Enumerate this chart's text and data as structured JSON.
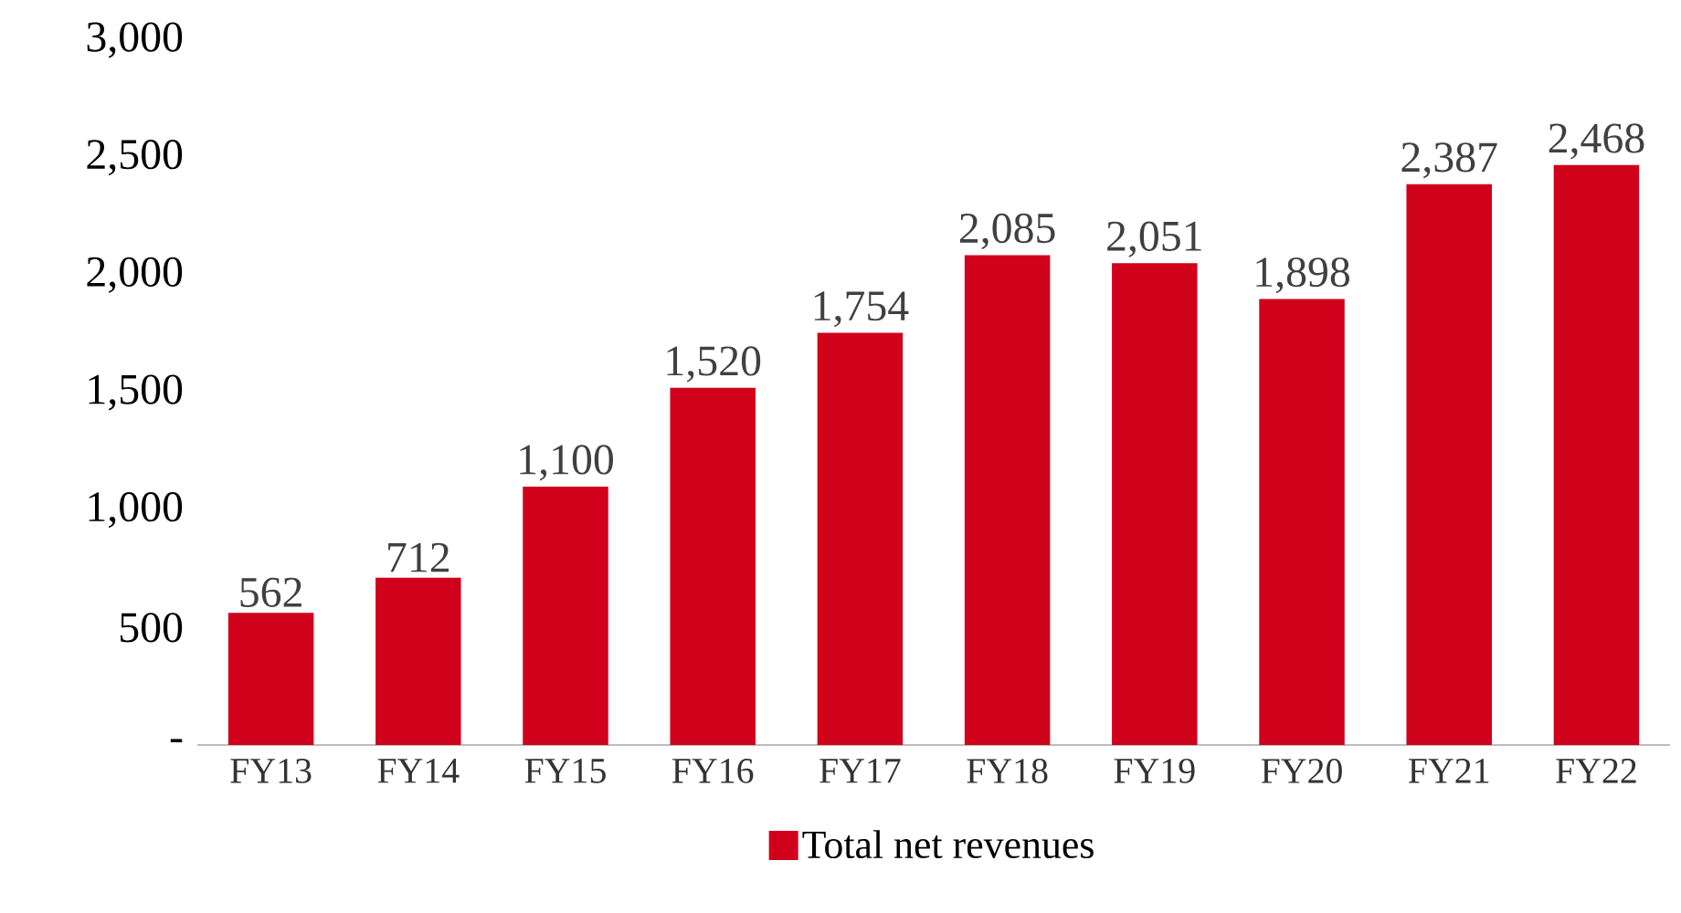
{
  "chart_data": {
    "type": "bar",
    "categories": [
      "FY13",
      "FY14",
      "FY15",
      "FY16",
      "FY17",
      "FY18",
      "FY19",
      "FY20",
      "FY21",
      "FY22"
    ],
    "series": [
      {
        "name": "Total net revenues",
        "color": "#d0021b",
        "values": [
          562,
          712,
          1100,
          1520,
          1754,
          2085,
          2051,
          1898,
          2387,
          2468
        ],
        "value_labels": [
          "562",
          "712",
          "1,100",
          "1,520",
          "1,754",
          "2,085",
          "2,051",
          "1,898",
          "2,387",
          "2,468"
        ]
      }
    ],
    "ylim": [
      0,
      3000
    ],
    "yticks": [
      {
        "value": 0,
        "label": "-"
      },
      {
        "value": 500,
        "label": "500"
      },
      {
        "value": 1000,
        "label": "1,000"
      },
      {
        "value": 1500,
        "label": "1,500"
      },
      {
        "value": 2000,
        "label": "2,000"
      },
      {
        "value": 2500,
        "label": "2,500"
      },
      {
        "value": 3000,
        "label": "3,000"
      }
    ],
    "grid": false,
    "legend": "bottom"
  }
}
